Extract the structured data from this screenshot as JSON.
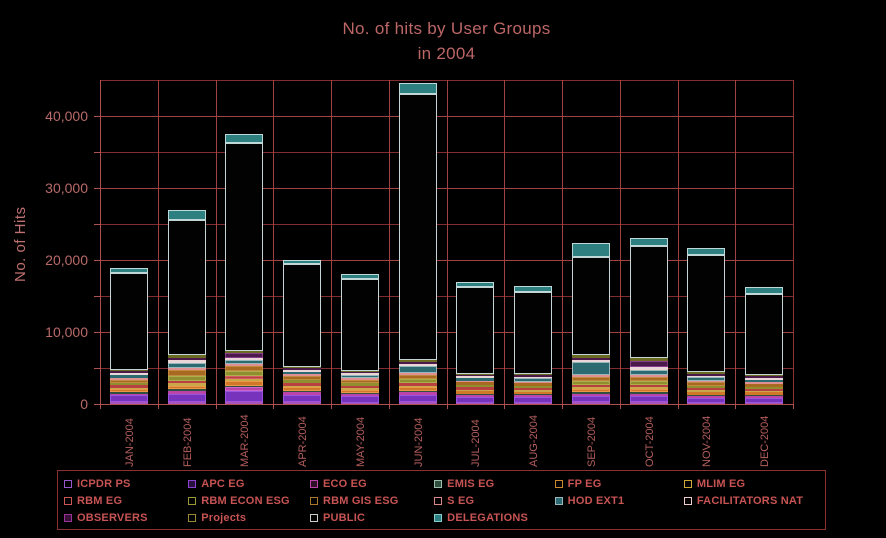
{
  "title": {
    "line1": "No. of hits by User Groups",
    "line2": "in 2004"
  },
  "colors": {
    "background": "#000000",
    "title_text": "#bc6666",
    "axis_text": "#b96a6a",
    "legend_text": "#c75353",
    "grid_major": "#a34040",
    "grid_minor": "#832e2e",
    "plot_border": "#8b3232",
    "axis_line": "#b05050"
  },
  "chart_data": {
    "type": "bar",
    "stacked": true,
    "title": "No. of hits by User Groups in 2004",
    "xlabel": "",
    "ylabel": "No. of Hits",
    "ylim": [
      0,
      45000
    ],
    "gridline_interval": 5000,
    "grid": true,
    "legend_position": "bottom",
    "yticks": [
      "0",
      "10,000",
      "20,000",
      "30,000",
      "40,000"
    ],
    "categories": [
      "JAN-2004",
      "FEB-2004",
      "MAR-2004",
      "APR-2004",
      "MAY-2004",
      "JUN-2004",
      "JUL-2004",
      "AUG-2004",
      "SEP-2004",
      "OCT-2004",
      "NOV-2004",
      "DEC-2004"
    ],
    "series": [
      {
        "name": "ICPDR PS",
        "color": "#aa55bb",
        "border": "#c077cc",
        "legend_fill": "#000000",
        "legend_border": "#9955cc",
        "values": [
          300,
          250,
          300,
          250,
          200,
          250,
          200,
          200,
          250,
          250,
          200,
          200
        ]
      },
      {
        "name": "APC EG",
        "color": "#7733bb",
        "border": "#9955dd",
        "legend_fill": "#2a1040",
        "legend_border": "#8844cc",
        "values": [
          900,
          1200,
          1500,
          1000,
          900,
          1000,
          800,
          750,
          900,
          850,
          700,
          650
        ]
      },
      {
        "name": "ECO EG",
        "color": "#bb44aa",
        "border": "#cc66cc",
        "legend_fill": "#301028",
        "legend_border": "#bb44aa",
        "values": [
          250,
          400,
          500,
          350,
          300,
          350,
          250,
          250,
          300,
          300,
          250,
          250
        ]
      },
      {
        "name": "EMIS EG",
        "color": "#2f4f3f",
        "border": "#9fbfae",
        "legend_fill": "#2f4f3f",
        "legend_border": "#9fbfae",
        "values": [
          150,
          200,
          250,
          200,
          150,
          200,
          150,
          150,
          200,
          200,
          150,
          150
        ]
      },
      {
        "name": "FP EG",
        "color": "#d07828",
        "border": "#e89848",
        "legend_fill": "#000000",
        "legend_border": "#cc8833",
        "values": [
          450,
          500,
          600,
          500,
          450,
          500,
          400,
          350,
          450,
          450,
          400,
          350
        ]
      },
      {
        "name": "MLIM EG",
        "color": "#c8a84a",
        "border": "#e0c060",
        "legend_fill": "#000000",
        "legend_border": "#ccaa33",
        "values": [
          200,
          300,
          350,
          250,
          200,
          250,
          200,
          200,
          250,
          250,
          200,
          200
        ]
      },
      {
        "name": "RBM EG",
        "color": "#b84040",
        "border": "#d06060",
        "legend_fill": "#000000",
        "legend_border": "#cc5555",
        "values": [
          350,
          400,
          450,
          400,
          350,
          400,
          300,
          300,
          350,
          350,
          300,
          300
        ]
      },
      {
        "name": "RBM ECON ESG",
        "color": "#8f8f2f",
        "border": "#adad4d",
        "legend_fill": "#000000",
        "legend_border": "#999933",
        "values": [
          300,
          700,
          600,
          400,
          350,
          500,
          300,
          300,
          500,
          500,
          350,
          300
        ]
      },
      {
        "name": "RBM GIS ESG",
        "color": "#a86a20",
        "border": "#c08a40",
        "legend_fill": "#000000",
        "legend_border": "#aa7722",
        "values": [
          450,
          800,
          700,
          500,
          450,
          600,
          400,
          400,
          600,
          600,
          450,
          400
        ]
      },
      {
        "name": "S EG",
        "color": "#e09090",
        "border": "#f0b0b0",
        "legend_fill": "#000000",
        "legend_border": "#dd8888",
        "values": [
          250,
          300,
          300,
          250,
          200,
          300,
          200,
          200,
          250,
          300,
          200,
          200
        ]
      },
      {
        "name": "HOD EXT1",
        "color": "#2c6a72",
        "border": "#9ab8bc",
        "legend_fill": "#2c6a72",
        "legend_border": "#9ab8bc",
        "values": [
          400,
          700,
          500,
          350,
          500,
          900,
          400,
          450,
          1800,
          700,
          500,
          400
        ]
      },
      {
        "name": "FACILITATORS NAT",
        "color": "#ead6d6",
        "border": "#f5e5e5",
        "legend_fill": "#000000",
        "legend_border": "#eecccc",
        "values": [
          300,
          400,
          350,
          300,
          250,
          350,
          250,
          250,
          300,
          350,
          250,
          250
        ]
      },
      {
        "name": "OBSERVERS",
        "color": "#4a1a4a",
        "border": "#8a3a8a",
        "legend_fill": "#3a1038",
        "legend_border": "#993399",
        "values": [
          250,
          300,
          700,
          250,
          200,
          300,
          200,
          250,
          300,
          900,
          250,
          250
        ]
      },
      {
        "name": "Projects",
        "color": "#6a6a22",
        "border": "#8a8a3a",
        "legend_fill": "#000000",
        "legend_border": "#998833",
        "values": [
          150,
          400,
          300,
          200,
          150,
          250,
          150,
          150,
          400,
          400,
          200,
          150
        ]
      },
      {
        "name": "PUBLIC",
        "color": "#020202",
        "border": "#c2d4d4",
        "legend_fill": "#000000",
        "legend_border": "#cccccc",
        "values": [
          13500,
          18650,
          28900,
          14300,
          12650,
          36950,
          12100,
          11400,
          13550,
          15500,
          16300,
          11250
        ]
      },
      {
        "name": "DELEGATIONS",
        "color": "#2e8080",
        "border": "#bcd8d8",
        "legend_fill": "#2e8080",
        "legend_border": "#88cccc",
        "values": [
          700,
          1400,
          1200,
          500,
          800,
          1500,
          600,
          800,
          2000,
          1200,
          1000,
          1000
        ]
      }
    ]
  },
  "layout_labels": {
    "chart_region": "hits-by-user-group-chart"
  }
}
